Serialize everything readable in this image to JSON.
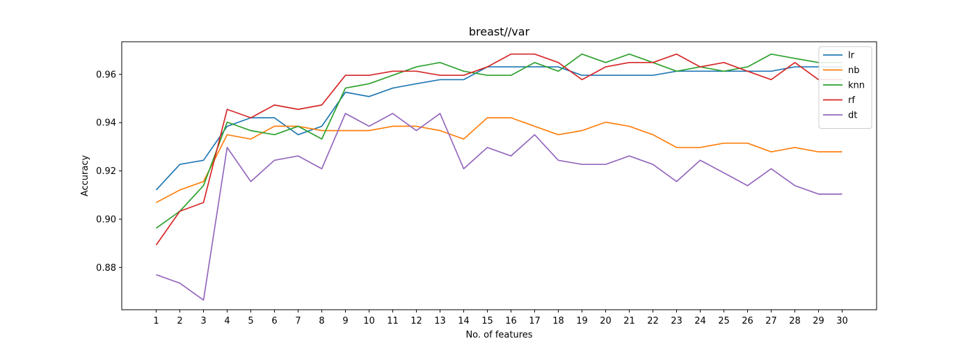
{
  "chart_data": {
    "type": "line",
    "title": "breast//var",
    "xlabel": "No. of features",
    "ylabel": "Accuracy",
    "x": [
      1,
      2,
      3,
      4,
      5,
      6,
      7,
      8,
      9,
      10,
      11,
      12,
      13,
      14,
      15,
      16,
      17,
      18,
      19,
      20,
      21,
      22,
      23,
      24,
      25,
      26,
      27,
      28,
      29,
      30
    ],
    "ylim": [
      0.8625,
      0.9735
    ],
    "yticks": [
      0.88,
      0.9,
      0.92,
      0.94,
      0.96
    ],
    "ytick_labels": [
      "0.88",
      "0.90",
      "0.92",
      "0.94",
      "0.96"
    ],
    "xtick_labels": [
      "1",
      "2",
      "3",
      "4",
      "5",
      "6",
      "7",
      "8",
      "9",
      "10",
      "11",
      "12",
      "13",
      "14",
      "15",
      "16",
      "17",
      "18",
      "19",
      "20",
      "21",
      "22",
      "23",
      "24",
      "25",
      "26",
      "27",
      "28",
      "29",
      "30"
    ],
    "grid": false,
    "legend_position": "top-right",
    "series": [
      {
        "name": "lr",
        "color": "#1f77b4",
        "values": [
          0.9121,
          0.9227,
          0.9244,
          0.9385,
          0.942,
          0.942,
          0.935,
          0.9385,
          0.9526,
          0.9508,
          0.9543,
          0.9561,
          0.9578,
          0.9578,
          0.9631,
          0.9631,
          0.9631,
          0.9631,
          0.9596,
          0.9596,
          0.9596,
          0.9596,
          0.9613,
          0.9613,
          0.9613,
          0.9613,
          0.9613,
          0.9631,
          0.9631,
          0.9631
        ]
      },
      {
        "name": "nb",
        "color": "#ff7f0e",
        "values": [
          0.9069,
          0.9121,
          0.9156,
          0.935,
          0.9332,
          0.9385,
          0.9385,
          0.9367,
          0.9367,
          0.9367,
          0.9385,
          0.9385,
          0.9367,
          0.9332,
          0.942,
          0.942,
          0.9385,
          0.935,
          0.9367,
          0.9402,
          0.9385,
          0.935,
          0.9297,
          0.9297,
          0.9315,
          0.9315,
          0.9279,
          0.9297,
          0.9279,
          0.9279
        ]
      },
      {
        "name": "knn",
        "color": "#2ca02c",
        "values": [
          0.8963,
          0.9033,
          0.9139,
          0.9402,
          0.9367,
          0.935,
          0.9385,
          0.9332,
          0.9543,
          0.9561,
          0.9596,
          0.9631,
          0.9649,
          0.9613,
          0.9596,
          0.9596,
          0.9649,
          0.9613,
          0.9684,
          0.9649,
          0.9684,
          0.9649,
          0.9613,
          0.9631,
          0.9613,
          0.9631,
          0.9684,
          0.9666,
          0.9649,
          0.9649
        ]
      },
      {
        "name": "rf",
        "color": "#d62728",
        "values": [
          0.8893,
          0.9033,
          0.9069,
          0.9455,
          0.942,
          0.9473,
          0.9455,
          0.9473,
          0.9596,
          0.9596,
          0.9613,
          0.9613,
          0.9596,
          0.9596,
          0.9631,
          0.9684,
          0.9684,
          0.9649,
          0.9578,
          0.9631,
          0.9649,
          0.9649,
          0.9684,
          0.9631,
          0.9649,
          0.9613,
          0.9578,
          0.9649,
          0.9578,
          0.9578
        ]
      },
      {
        "name": "dt",
        "color": "#9467bd",
        "values": [
          0.877,
          0.8735,
          0.8665,
          0.9297,
          0.9156,
          0.9244,
          0.9262,
          0.9209,
          0.9438,
          0.9385,
          0.9438,
          0.9367,
          0.9438,
          0.9209,
          0.9297,
          0.9262,
          0.935,
          0.9244,
          0.9227,
          0.9227,
          0.9262,
          0.9227,
          0.9156,
          0.9244,
          0.9192,
          0.9139,
          0.9209,
          0.9139,
          0.9104,
          0.9104
        ]
      }
    ]
  }
}
